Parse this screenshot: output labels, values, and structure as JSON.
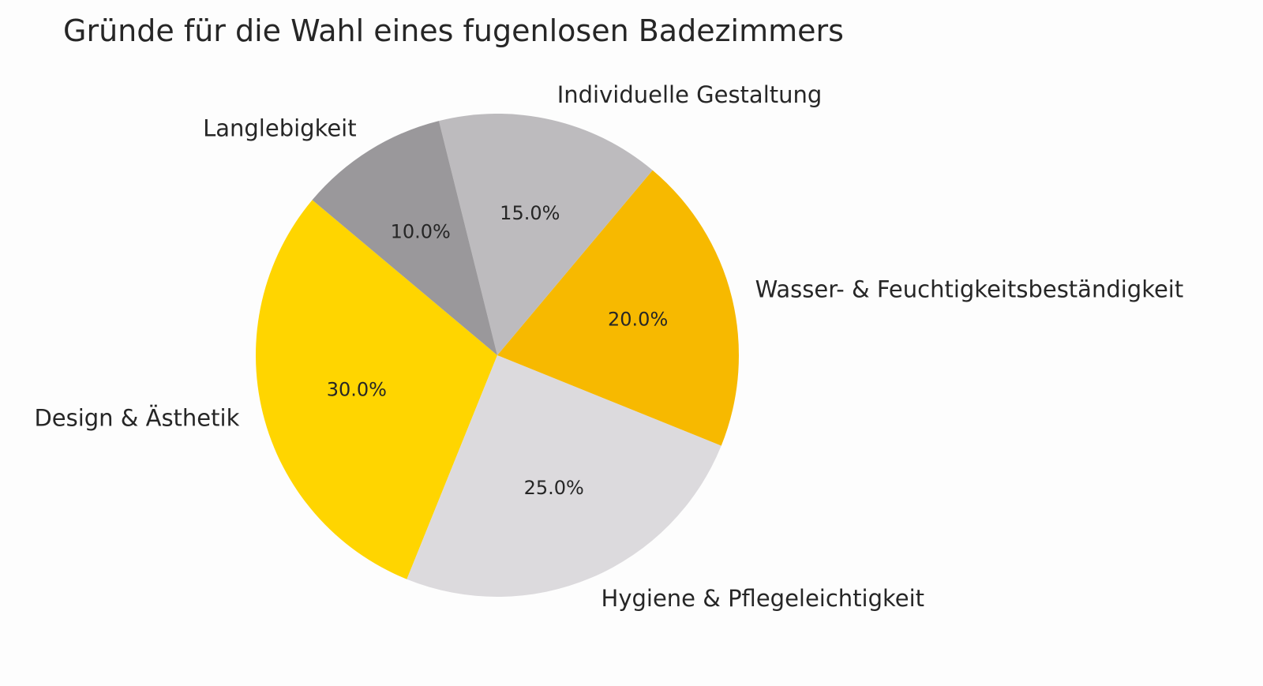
{
  "chart_data": {
    "type": "pie",
    "title": "Gründe für die Wahl eines fugenlosen Badezimmers",
    "categories": [
      "Design & Ästhetik",
      "Hygiene & Pflegeleichtigkeit",
      "Wasser- & Feuchtigkeitsbeständigkeit",
      "Individuelle Gestaltung",
      "Langlebigkeit"
    ],
    "values": [
      30,
      25,
      20,
      15,
      10
    ],
    "value_labels": [
      "30.0%",
      "25.0%",
      "20.0%",
      "15.0%",
      "10.0%"
    ],
    "colors": [
      "#FFD500",
      "#DCDADD",
      "#F7B900",
      "#BDBBBE",
      "#9A989B"
    ],
    "start_angle": 140
  }
}
